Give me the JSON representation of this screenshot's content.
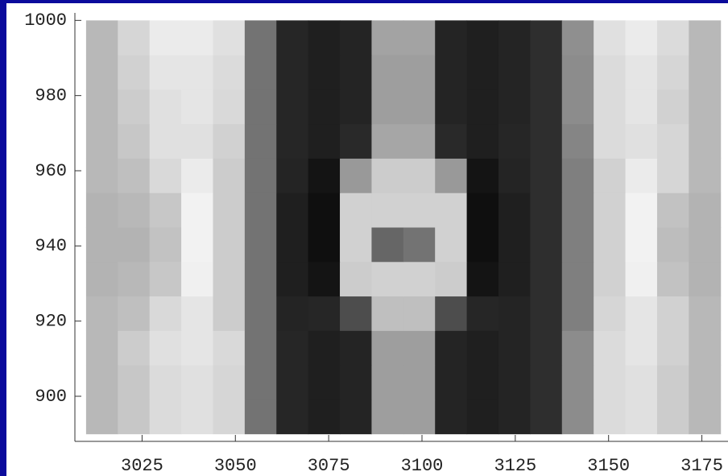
{
  "chart_data": {
    "type": "density",
    "xlim": [
      3007,
      3182
    ],
    "ylim": [
      888,
      1002
    ],
    "xticks": [
      3025,
      3050,
      3075,
      3100,
      3125,
      3150,
      3175
    ],
    "yticks": [
      900,
      920,
      940,
      960,
      980,
      1000
    ],
    "extent_x": [
      3010,
      3180
    ],
    "extent_y": [
      890,
      1000
    ],
    "z": [
      [
        72,
        78,
        86,
        88,
        84,
        45,
        15,
        12,
        14,
        62,
        62,
        14,
        12,
        14,
        18,
        55,
        86,
        88,
        80,
        72
      ],
      [
        72,
        78,
        86,
        88,
        84,
        45,
        15,
        12,
        14,
        62,
        62,
        14,
        12,
        14,
        18,
        55,
        86,
        88,
        80,
        72
      ],
      [
        72,
        80,
        88,
        90,
        85,
        45,
        15,
        12,
        14,
        62,
        62,
        14,
        12,
        14,
        18,
        55,
        86,
        90,
        82,
        72
      ],
      [
        72,
        75,
        85,
        90,
        80,
        45,
        14,
        15,
        30,
        75,
        75,
        30,
        15,
        14,
        18,
        50,
        84,
        90,
        82,
        72
      ],
      [
        70,
        72,
        78,
        94,
        80,
        45,
        12,
        8,
        80,
        82,
        82,
        80,
        8,
        12,
        18,
        50,
        82,
        94,
        76,
        70
      ],
      [
        70,
        70,
        76,
        95,
        80,
        45,
        12,
        6,
        82,
        40,
        45,
        82,
        6,
        12,
        18,
        50,
        82,
        95,
        74,
        70
      ],
      [
        70,
        72,
        78,
        95,
        80,
        45,
        12,
        6,
        82,
        82,
        82,
        82,
        6,
        12,
        18,
        50,
        82,
        95,
        76,
        70
      ],
      [
        72,
        75,
        85,
        92,
        80,
        45,
        14,
        8,
        60,
        80,
        80,
        60,
        8,
        14,
        18,
        50,
        82,
        92,
        84,
        72
      ],
      [
        72,
        78,
        88,
        88,
        82,
        45,
        15,
        12,
        16,
        65,
        65,
        16,
        12,
        15,
        18,
        52,
        86,
        88,
        84,
        72
      ],
      [
        72,
        80,
        88,
        90,
        85,
        45,
        15,
        12,
        14,
        62,
        62,
        14,
        12,
        14,
        18,
        55,
        86,
        90,
        82,
        72
      ],
      [
        72,
        82,
        90,
        90,
        86,
        45,
        15,
        12,
        14,
        62,
        62,
        14,
        12,
        14,
        18,
        55,
        86,
        90,
        84,
        72
      ],
      [
        72,
        84,
        92,
        92,
        88,
        45,
        15,
        12,
        14,
        64,
        64,
        14,
        12,
        14,
        18,
        56,
        88,
        92,
        86,
        72
      ]
    ]
  }
}
